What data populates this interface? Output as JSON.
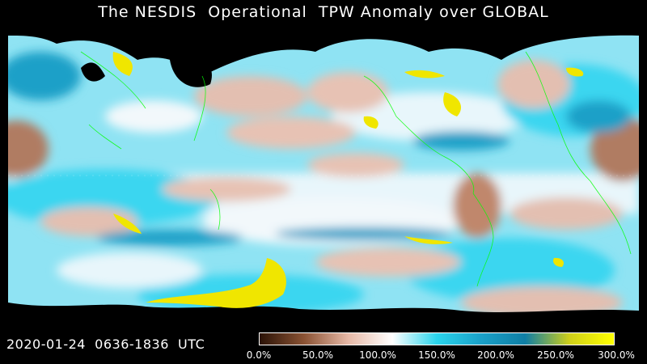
{
  "title": "The NESDIS  Operational  TPW Anomaly over GLOBAL",
  "timestamp": "2020-01-24  0636-1836  UTC",
  "colorbar": {
    "ticks": [
      "0.0%",
      "50.0%",
      "100.0%",
      "150.0%",
      "200.0%",
      "250.0%",
      "300.0%"
    ],
    "stops": [
      "#2a1206",
      "#8a5233",
      "#e6b8a6",
      "#ffffff",
      "#2ad4ec",
      "#1aa0c8",
      "#0f7ea4",
      "#cfcf1a",
      "#ffff00"
    ]
  },
  "colors": {
    "background": "#000000",
    "dry": "#c99580",
    "normal": "#f2f8fb",
    "moist": "#3ad6f0",
    "very_moist": "#0f90b8",
    "extreme": "#f0e600",
    "coastline": "#00ff00"
  }
}
